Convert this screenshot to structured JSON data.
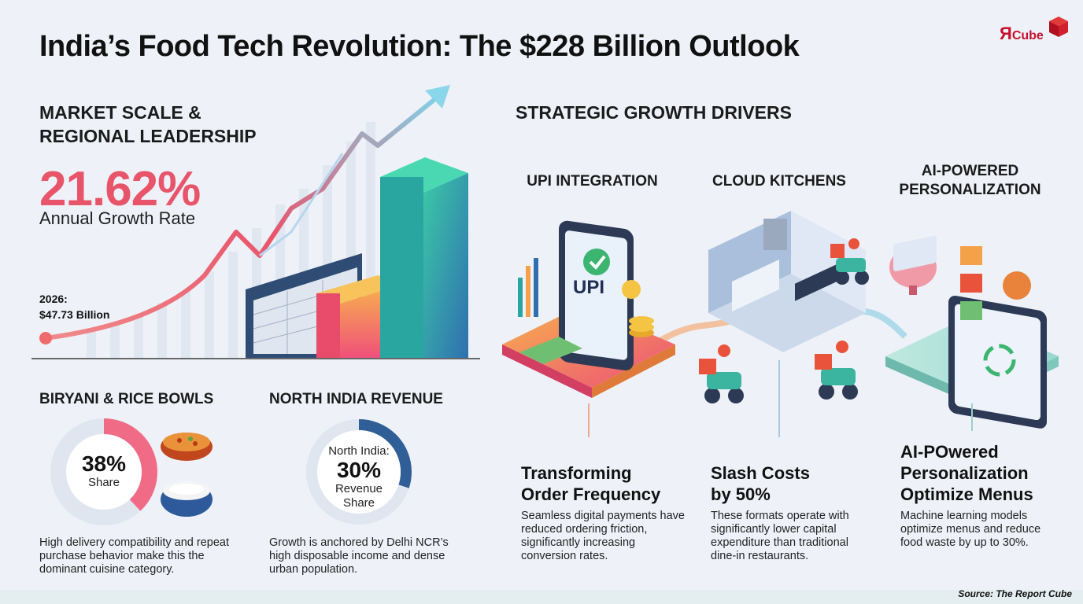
{
  "title": "India’s Food Tech Revolution: The $228 Billion Outlook",
  "logo": {
    "mark": "Я",
    "text": "Cube"
  },
  "market": {
    "heading": "MARKET SCALE & REGIONAL LEADERSHIP",
    "growth_rate": "21.62%",
    "growth_label": "Annual Growth Rate",
    "year_label": "2026:",
    "year_value": "$47.73 Billion"
  },
  "biryani": {
    "heading": "BIRYANI & RICE BOWLS",
    "value": "38%",
    "value_label": "Share",
    "share_fraction": 0.38,
    "description": "High delivery compatibility and repeat purchase behavior make this the dominant cuisine category."
  },
  "north_india": {
    "heading": "NORTH INDIA REVENUE",
    "pre_label": "North India:",
    "value": "30%",
    "value_label": "Revenue Share",
    "share_fraction": 0.3,
    "description": "Growth is anchored by Delhi NCR’s high disposable income and dense urban population."
  },
  "drivers": {
    "heading": "STRATEGIC GROWTH DRIVERS",
    "items": [
      {
        "label": "UPI INTEGRATION",
        "title": "Transforming Order Frequency",
        "description": "Seamless digital payments have reduced ordering friction, significantly increasing conversion rates.",
        "illustration_text": "UPI"
      },
      {
        "label": "CLOUD KITCHENS",
        "title": "Slash Costs by 50%",
        "description": "These formats operate with significantly lower capital expenditure than traditional dine-in restaurants."
      },
      {
        "label": "AI-POWERED PERSONALIZATION",
        "title": "AI-POwered Personalization Optimize Menus",
        "description": "Machine learning models optimize menus and reduce food waste by up to 30%."
      }
    ]
  },
  "source": "Source: The Report Cube",
  "colors": {
    "accent_pink": "#e8556b",
    "teal": "#2aa6a0",
    "blue": "#2f6fb0",
    "orange": "#f5a14a"
  }
}
